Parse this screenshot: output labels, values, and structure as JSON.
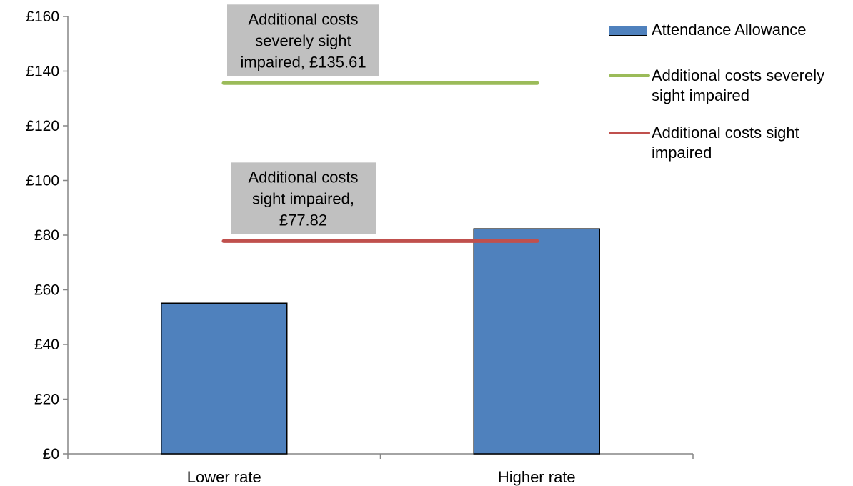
{
  "chart_data": {
    "type": "bar",
    "title": "",
    "xlabel": "",
    "ylabel": "",
    "categories": [
      "Lower rate",
      "Higher rate"
    ],
    "ylim": [
      0,
      160
    ],
    "yticks": [
      0,
      20,
      40,
      60,
      80,
      100,
      120,
      140,
      160
    ],
    "ytick_labels": [
      "£0",
      "£20",
      "£40",
      "£60",
      "£80",
      "£100",
      "£120",
      "£140",
      "£160"
    ],
    "series": [
      {
        "name": "Attendance Allowance",
        "kind": "bar",
        "values": [
          55.1,
          82.3
        ],
        "color": "#4f81bd"
      }
    ],
    "reference_lines": [
      {
        "name": "Additional costs severely sight impaired",
        "value": 135.61,
        "color": "#9bbb59",
        "annotation": [
          "Additional costs",
          "severely sight",
          "impaired, £135.61"
        ]
      },
      {
        "name": "Additional costs sight impaired",
        "value": 77.82,
        "color": "#c0504d",
        "annotation": [
          "Additional costs",
          "sight impaired,",
          "£77.82"
        ]
      }
    ],
    "legend": {
      "position": "right",
      "items": [
        {
          "label": "Attendance Allowance",
          "style": "bar",
          "color": "#4f81bd"
        },
        {
          "label": "Additional costs severely sight impaired",
          "style": "line",
          "color": "#9bbb59"
        },
        {
          "label": "Additional costs sight impaired",
          "style": "line",
          "color": "#c0504d"
        }
      ]
    },
    "annotation_box_color": "#c0c0c0",
    "grid": false
  }
}
